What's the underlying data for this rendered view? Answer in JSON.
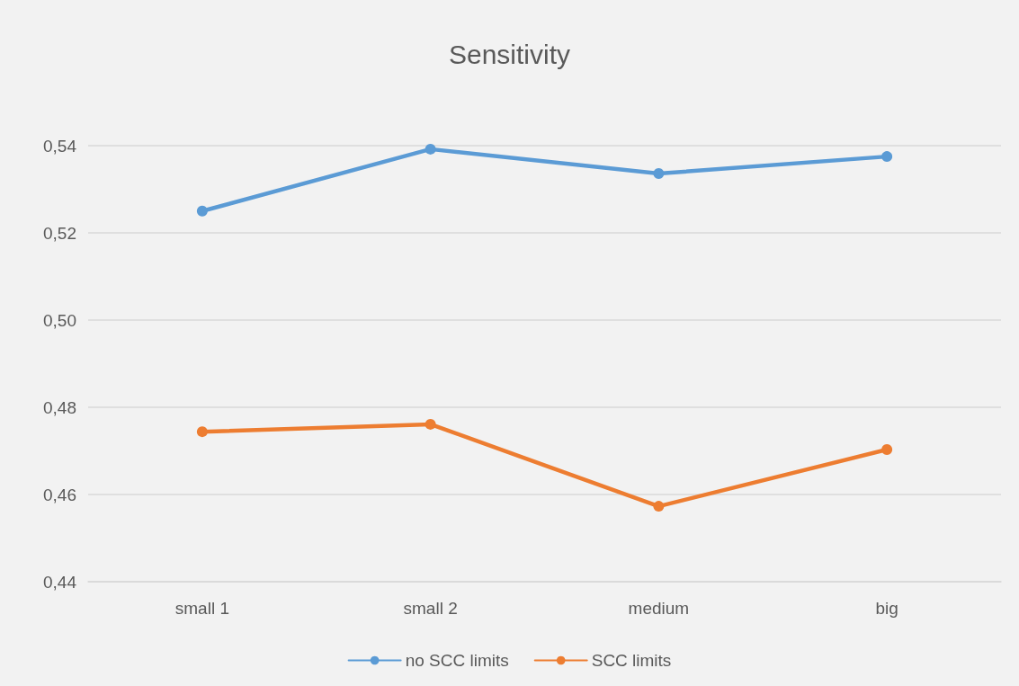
{
  "chart_data": {
    "type": "line",
    "title": "Sensitivity",
    "categories": [
      "small 1",
      "small 2",
      "medium",
      "big"
    ],
    "series": [
      {
        "name": "no SCC limits",
        "color": "#5b9bd5",
        "values": [
          0.525,
          0.5392,
          0.5336,
          0.5375
        ]
      },
      {
        "name": "SCC limits",
        "color": "#ed7d31",
        "values": [
          0.4744,
          0.4761,
          0.4573,
          0.4703
        ]
      }
    ],
    "ylim": [
      0.44,
      0.54
    ],
    "yticks": [
      {
        "value": 0.44,
        "label": "0,44"
      },
      {
        "value": 0.46,
        "label": "0,46"
      },
      {
        "value": 0.48,
        "label": "0,48"
      },
      {
        "value": 0.5,
        "label": "0,50"
      },
      {
        "value": 0.52,
        "label": "0,52"
      },
      {
        "value": 0.54,
        "label": "0,54"
      }
    ],
    "grid": "y",
    "legend": "bottom",
    "marker": "circle",
    "line_style": "solid"
  }
}
